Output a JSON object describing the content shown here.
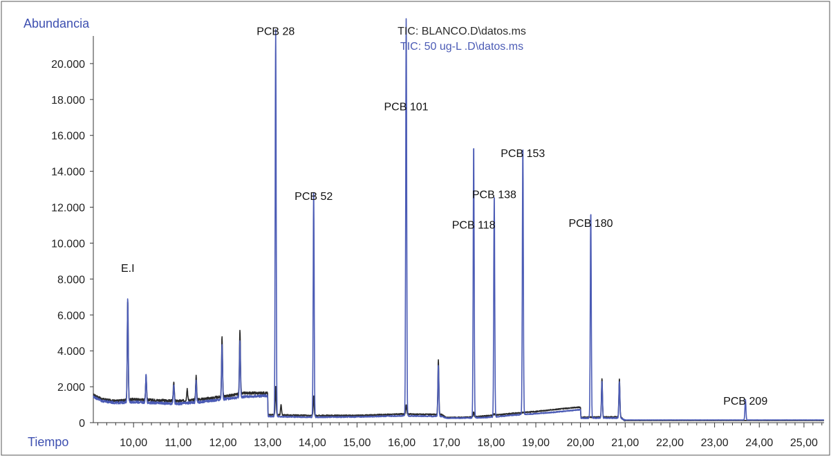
{
  "chart_data": {
    "type": "line",
    "ylabel": "Abundancia",
    "xlabel": "Tiempo",
    "xlim": [
      9.1,
      25.45
    ],
    "ylim": [
      0,
      22000
    ],
    "grid": false,
    "legend_position": "top-center",
    "x_ticks": [
      10,
      11,
      12,
      13,
      14,
      15,
      16,
      17,
      18,
      19,
      20,
      21,
      22,
      23,
      24,
      25
    ],
    "x_tick_labels": [
      "10,00",
      "11,00",
      "12,00",
      "13,00",
      "14,00",
      "15,00",
      "16,00",
      "17,00",
      "18,00",
      "19,00",
      "20,00",
      "21,00",
      "22,00",
      "23,00",
      "24,00",
      "25,00"
    ],
    "y_ticks": [
      0,
      2000,
      4000,
      6000,
      8000,
      10000,
      12000,
      14000,
      16000,
      18000,
      20000
    ],
    "y_tick_labels": [
      "0",
      "2.000",
      "4.000",
      "6.000",
      "8.000",
      "10.000",
      "12.000",
      "14.000",
      "16.000",
      "18.000",
      "20.000"
    ],
    "series": [
      {
        "name": "TIC: BLANCO.D\\datos.ms",
        "color": "#2b2b2b",
        "baseline": [
          [
            9.1,
            1550
          ],
          [
            9.3,
            1300
          ],
          [
            9.6,
            1200
          ],
          [
            10.0,
            1300
          ],
          [
            10.5,
            1250
          ],
          [
            11.0,
            1200
          ],
          [
            11.5,
            1300
          ],
          [
            12.0,
            1450
          ],
          [
            12.5,
            1650
          ],
          [
            13.0,
            1650
          ],
          [
            13.01,
            450
          ],
          [
            13.5,
            420
          ],
          [
            14.0,
            400
          ],
          [
            15.0,
            400
          ],
          [
            16.0,
            480
          ],
          [
            16.9,
            450
          ],
          [
            17.0,
            280
          ],
          [
            17.5,
            300
          ],
          [
            18.0,
            400
          ],
          [
            18.5,
            520
          ],
          [
            19.0,
            620
          ],
          [
            19.5,
            750
          ],
          [
            19.95,
            860
          ],
          [
            20.0,
            850
          ],
          [
            20.01,
            300
          ],
          [
            20.9,
            320
          ],
          [
            20.98,
            120
          ],
          [
            25.45,
            120
          ]
        ],
        "peaks": [
          [
            9.87,
            6800
          ],
          [
            10.28,
            2600
          ],
          [
            10.9,
            2300
          ],
          [
            11.2,
            1900
          ],
          [
            11.4,
            2600
          ],
          [
            11.98,
            4800
          ],
          [
            12.38,
            5200
          ],
          [
            13.18,
            2000
          ],
          [
            13.3,
            1000
          ],
          [
            14.03,
            1500
          ],
          [
            16.1,
            1000
          ],
          [
            16.82,
            3500
          ],
          [
            17.61,
            600
          ],
          [
            18.07,
            500
          ],
          [
            20.48,
            2450
          ],
          [
            20.87,
            2450
          ]
        ]
      },
      {
        "name": "TIC: 50 ug-L .D\\datos.ms",
        "color": "#4b5bb5",
        "baseline": [
          [
            9.1,
            1450
          ],
          [
            9.3,
            1200
          ],
          [
            9.6,
            1100
          ],
          [
            10.0,
            1150
          ],
          [
            10.5,
            1100
          ],
          [
            11.0,
            1050
          ],
          [
            11.5,
            1150
          ],
          [
            12.0,
            1300
          ],
          [
            12.5,
            1450
          ],
          [
            13.0,
            1500
          ],
          [
            13.01,
            350
          ],
          [
            13.5,
            320
          ],
          [
            14.0,
            300
          ],
          [
            15.0,
            320
          ],
          [
            16.0,
            380
          ],
          [
            16.9,
            350
          ],
          [
            17.0,
            250
          ],
          [
            17.5,
            260
          ],
          [
            18.0,
            300
          ],
          [
            18.5,
            420
          ],
          [
            19.0,
            500
          ],
          [
            19.5,
            600
          ],
          [
            19.95,
            720
          ],
          [
            20.0,
            720
          ],
          [
            20.01,
            250
          ],
          [
            20.9,
            260
          ],
          [
            20.98,
            150
          ],
          [
            25.45,
            150
          ]
        ],
        "peaks": [
          [
            9.87,
            6950
          ],
          [
            10.28,
            2700
          ],
          [
            10.9,
            2100
          ],
          [
            11.4,
            2300
          ],
          [
            11.98,
            4300
          ],
          [
            12.38,
            4600
          ],
          [
            13.18,
            21900
          ],
          [
            14.03,
            13000
          ],
          [
            16.1,
            22500
          ],
          [
            16.82,
            3200
          ],
          [
            17.61,
            15500
          ],
          [
            18.07,
            12700
          ],
          [
            18.71,
            15400
          ],
          [
            20.23,
            11750
          ],
          [
            20.48,
            2300
          ],
          [
            20.87,
            2300
          ],
          [
            23.69,
            1300
          ]
        ]
      }
    ],
    "annotations": [
      {
        "text": "E.I",
        "x": 9.87,
        "y": 8400
      },
      {
        "text": "PCB 28",
        "x": 13.18,
        "y": 21600
      },
      {
        "text": "PCB 52",
        "x": 14.03,
        "y": 12400
      },
      {
        "text": "PCB 101",
        "x": 16.1,
        "y": 17400
      },
      {
        "text": "PCB 118",
        "x": 17.61,
        "y": 10800
      },
      {
        "text": "PCB 138",
        "x": 18.07,
        "y": 12500
      },
      {
        "text": "PCB 153",
        "x": 18.71,
        "y": 14800
      },
      {
        "text": "PCB 180",
        "x": 20.23,
        "y": 10900
      },
      {
        "text": "PCB 209",
        "x": 23.69,
        "y": 1000
      }
    ]
  }
}
